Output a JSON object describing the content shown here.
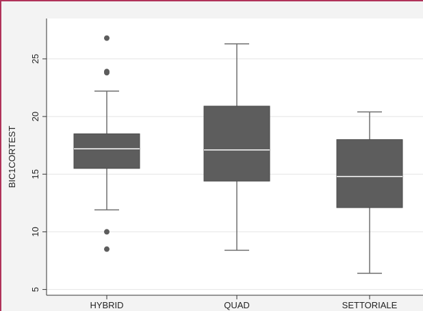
{
  "chart_data": {
    "type": "boxplot",
    "title": "",
    "xlabel": "",
    "ylabel": "BIC1CORTEST",
    "ylim": [
      4.5,
      28.5
    ],
    "yticks": [
      5,
      10,
      15,
      20,
      25
    ],
    "grid": true,
    "legend": "none",
    "colors": {
      "box_fill": "#5d5d5d",
      "median_line": "#ffffff",
      "whisker": "#6f6f6f",
      "outlier": "#5d5d5d",
      "grid": "#e4e4e4",
      "background": "#ffffff"
    },
    "categories": [
      "HYBRID",
      "QUAD",
      "SETTORIALE"
    ],
    "boxes": [
      {
        "category": "HYBRID",
        "whisker_low": 11.9,
        "q1": 15.5,
        "median": 17.2,
        "q3": 18.5,
        "whisker_high": 22.2,
        "outliers": [
          26.8,
          23.9,
          23.8,
          10.0,
          8.5
        ]
      },
      {
        "category": "QUAD",
        "whisker_low": 8.4,
        "q1": 14.4,
        "median": 17.1,
        "q3": 20.9,
        "whisker_high": 26.3,
        "outliers": []
      },
      {
        "category": "SETTORIALE",
        "whisker_low": 6.4,
        "q1": 12.1,
        "median": 14.8,
        "q3": 18.0,
        "whisker_high": 20.4,
        "outliers": []
      }
    ]
  }
}
